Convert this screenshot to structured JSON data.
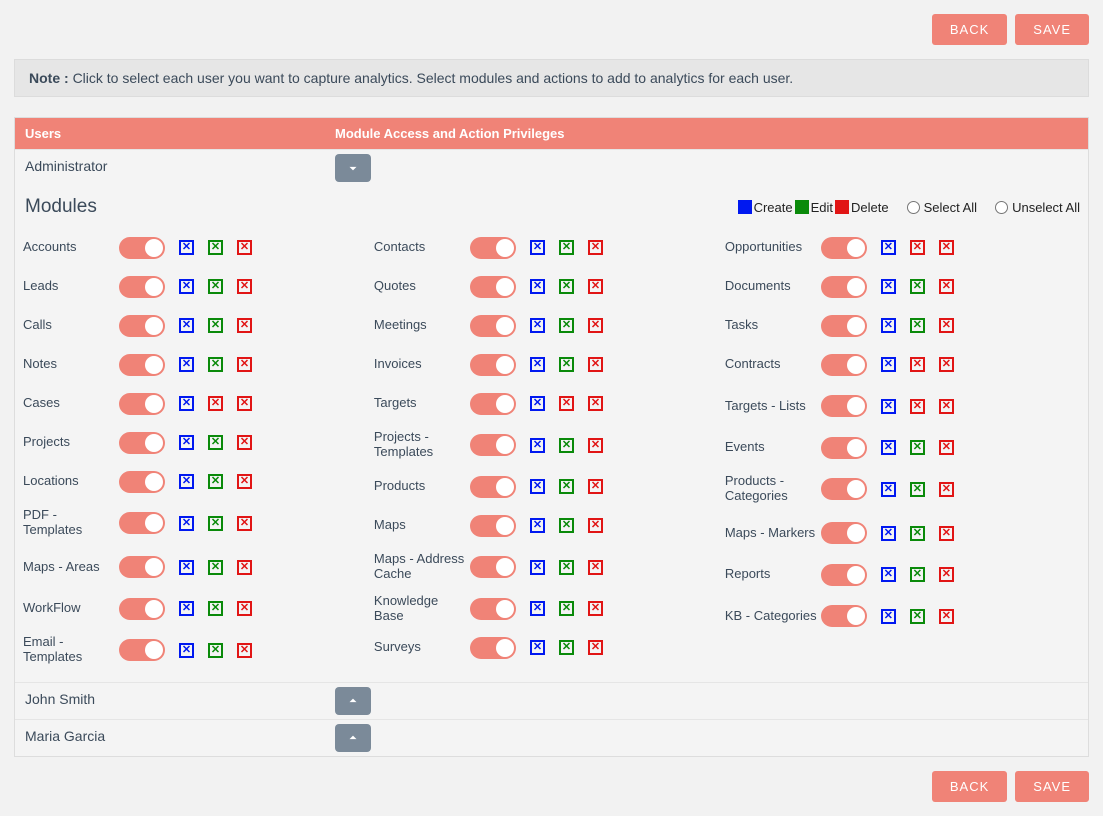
{
  "buttons": {
    "back": "BACK",
    "save": "SAVE"
  },
  "note": {
    "prefix": "Note : ",
    "text": "Click to select each user you want to capture analytics. Select modules and actions to add to analytics for each user."
  },
  "header": {
    "users": "Users",
    "priv": "Module Access and Action Privileges"
  },
  "modules_title": "Modules",
  "legend": {
    "create": "Create",
    "edit": "Edit",
    "delete": "Delete",
    "select_all": "Select All",
    "unselect_all": "Unselect All",
    "colors": {
      "create": "#0018f0",
      "edit": "#0a8a0a",
      "delete": "#e11515"
    }
  },
  "accent_color": "#f08377",
  "users": [
    {
      "name": "Administrator",
      "expanded": true
    },
    {
      "name": "John Smith",
      "expanded": false
    },
    {
      "name": "Maria Garcia",
      "expanded": false
    }
  ],
  "module_columns": [
    [
      {
        "label": "Accounts",
        "on": true,
        "boxes": [
          "blue",
          "green",
          "red"
        ]
      },
      {
        "label": "Leads",
        "on": true,
        "boxes": [
          "blue",
          "green",
          "red"
        ]
      },
      {
        "label": "Calls",
        "on": true,
        "boxes": [
          "blue",
          "green",
          "red"
        ]
      },
      {
        "label": "Notes",
        "on": true,
        "boxes": [
          "blue",
          "green",
          "red"
        ]
      },
      {
        "label": "Cases",
        "on": true,
        "boxes": [
          "blue",
          "red",
          "red"
        ]
      },
      {
        "label": "Projects",
        "on": true,
        "boxes": [
          "blue",
          "green",
          "red"
        ]
      },
      {
        "label": "Locations",
        "on": true,
        "boxes": [
          "blue",
          "green",
          "red"
        ]
      },
      {
        "label": "PDF - Templates",
        "on": true,
        "boxes": [
          "blue",
          "green",
          "red"
        ]
      },
      {
        "label": "Maps - Areas",
        "on": true,
        "boxes": [
          "blue",
          "green",
          "red"
        ]
      },
      {
        "label": "WorkFlow",
        "on": true,
        "boxes": [
          "blue",
          "green",
          "red"
        ]
      },
      {
        "label": "Email - Templates",
        "on": true,
        "boxes": [
          "blue",
          "green",
          "red"
        ]
      }
    ],
    [
      {
        "label": "Contacts",
        "on": true,
        "boxes": [
          "blue",
          "green",
          "red"
        ]
      },
      {
        "label": "Quotes",
        "on": true,
        "boxes": [
          "blue",
          "green",
          "red"
        ]
      },
      {
        "label": "Meetings",
        "on": true,
        "boxes": [
          "blue",
          "green",
          "red"
        ]
      },
      {
        "label": "Invoices",
        "on": true,
        "boxes": [
          "blue",
          "green",
          "red"
        ]
      },
      {
        "label": "Targets",
        "on": true,
        "boxes": [
          "blue",
          "red",
          "red"
        ]
      },
      {
        "label": "Projects - Templates",
        "on": true,
        "boxes": [
          "blue",
          "green",
          "red"
        ]
      },
      {
        "label": "Products",
        "on": true,
        "boxes": [
          "blue",
          "green",
          "red"
        ]
      },
      {
        "label": "Maps",
        "on": true,
        "boxes": [
          "blue",
          "green",
          "red"
        ]
      },
      {
        "label": "Maps - Address Cache",
        "on": true,
        "boxes": [
          "blue",
          "green",
          "red"
        ]
      },
      {
        "label": "Knowledge Base",
        "on": true,
        "boxes": [
          "blue",
          "green",
          "red"
        ]
      },
      {
        "label": "Surveys",
        "on": true,
        "boxes": [
          "blue",
          "green",
          "red"
        ]
      }
    ],
    [
      {
        "label": "Opportunities",
        "on": true,
        "boxes": [
          "blue",
          "red",
          "red"
        ]
      },
      {
        "label": "Documents",
        "on": true,
        "boxes": [
          "blue",
          "green",
          "red"
        ]
      },
      {
        "label": "Tasks",
        "on": true,
        "boxes": [
          "blue",
          "green",
          "red"
        ]
      },
      {
        "label": "Contracts",
        "on": true,
        "boxes": [
          "blue",
          "red",
          "red"
        ]
      },
      {
        "label": "Targets - Lists",
        "on": true,
        "boxes": [
          "blue",
          "red",
          "red"
        ]
      },
      {
        "label": "Events",
        "on": true,
        "boxes": [
          "blue",
          "green",
          "red"
        ]
      },
      {
        "label": "Products - Categories",
        "on": true,
        "boxes": [
          "blue",
          "green",
          "red"
        ]
      },
      {
        "label": "Maps - Markers",
        "on": true,
        "boxes": [
          "blue",
          "green",
          "red"
        ]
      },
      {
        "label": "Reports",
        "on": true,
        "boxes": [
          "blue",
          "green",
          "red"
        ]
      },
      {
        "label": "KB - Categories",
        "on": true,
        "boxes": [
          "blue",
          "green",
          "red"
        ]
      }
    ]
  ]
}
